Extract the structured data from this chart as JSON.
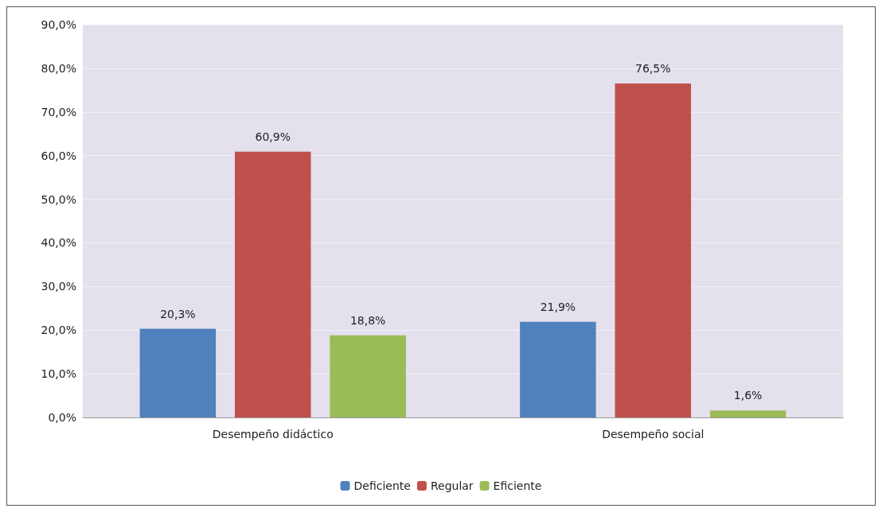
{
  "chart_data": {
    "type": "bar",
    "categories": [
      "Desempeño didáctico",
      "Desempeño social"
    ],
    "series": [
      {
        "name": "Deficiente",
        "color": "#4f81bd",
        "values": [
          20.3,
          21.9
        ],
        "value_labels": [
          "20,3%",
          "21,9%"
        ]
      },
      {
        "name": "Regular",
        "color": "#c0504d",
        "values": [
          60.9,
          76.5
        ],
        "value_labels": [
          "60,9%",
          "76,5%"
        ]
      },
      {
        "name": "Eficiente",
        "color": "#9bbb59",
        "values": [
          18.8,
          1.6
        ],
        "value_labels": [
          "18,8%",
          "1,6%"
        ]
      }
    ],
    "ylim": [
      0,
      90
    ],
    "yticks": [
      {
        "value": 0,
        "label": "0,0%"
      },
      {
        "value": 10,
        "label": "10,0%"
      },
      {
        "value": 20,
        "label": "20,0%"
      },
      {
        "value": 30,
        "label": "30,0%"
      },
      {
        "value": 40,
        "label": "40,0%"
      },
      {
        "value": 50,
        "label": "50,0%"
      },
      {
        "value": 60,
        "label": "60,0%"
      },
      {
        "value": 70,
        "label": "70,0%"
      },
      {
        "value": 80,
        "label": "80,0%"
      },
      {
        "value": 90,
        "label": "90,0%"
      }
    ],
    "grid": "y",
    "legend": "bottom"
  }
}
